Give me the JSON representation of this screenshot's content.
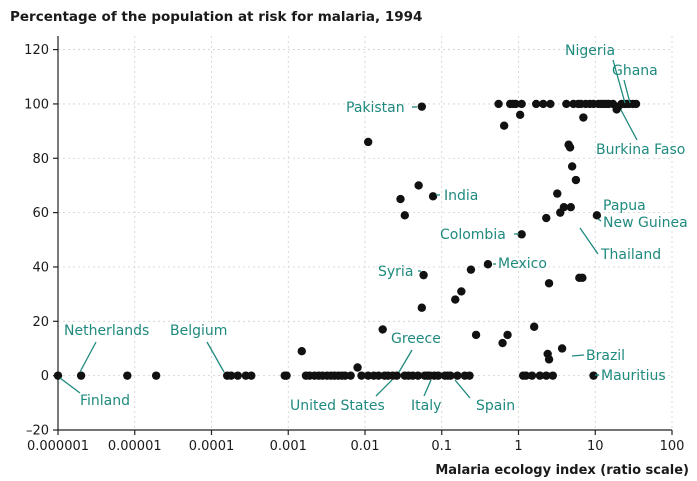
{
  "chart_data": {
    "type": "scatter",
    "title": "Percentage of the population at risk for malaria, 1994",
    "xlabel": "Malaria ecology index (ratio scale)",
    "ylabel": "",
    "xscale": "log",
    "xlim": [
      1e-06,
      100
    ],
    "ylim": [
      -20,
      125
    ],
    "grid": true,
    "accent_color": "#1f8a7e",
    "point_color": "#111111",
    "x_ticks": [
      {
        "value": 1e-06,
        "label": "0.000001"
      },
      {
        "value": 1e-05,
        "label": "0.00001"
      },
      {
        "value": 0.0001,
        "label": "0.0001"
      },
      {
        "value": 0.001,
        "label": "0.001"
      },
      {
        "value": 0.01,
        "label": "0.01"
      },
      {
        "value": 0.1,
        "label": "0.1"
      },
      {
        "value": 1,
        "label": "1"
      },
      {
        "value": 10,
        "label": "10"
      },
      {
        "value": 100,
        "label": "100"
      }
    ],
    "y_ticks": [
      {
        "value": -20,
        "label": "–20"
      },
      {
        "value": 0,
        "label": "0"
      },
      {
        "value": 20,
        "label": "20"
      },
      {
        "value": 40,
        "label": "40"
      },
      {
        "value": 60,
        "label": "60"
      },
      {
        "value": 80,
        "label": "80"
      },
      {
        "value": 100,
        "label": "100"
      },
      {
        "value": 120,
        "label": "120"
      }
    ],
    "points": [
      [
        1e-06,
        0
      ],
      [
        2e-06,
        0
      ],
      [
        8e-06,
        0
      ],
      [
        1.9e-05,
        0
      ],
      [
        0.00016,
        0
      ],
      [
        0.00018,
        0
      ],
      [
        0.00022,
        0
      ],
      [
        0.00028,
        0
      ],
      [
        0.00033,
        0
      ],
      [
        0.0009,
        0
      ],
      [
        0.00095,
        0
      ],
      [
        0.0015,
        9
      ],
      [
        0.0017,
        0
      ],
      [
        0.0019,
        0
      ],
      [
        0.0022,
        0
      ],
      [
        0.0025,
        0
      ],
      [
        0.0028,
        0
      ],
      [
        0.0032,
        0
      ],
      [
        0.0036,
        0
      ],
      [
        0.004,
        0
      ],
      [
        0.0045,
        0
      ],
      [
        0.005,
        0
      ],
      [
        0.0055,
        0
      ],
      [
        0.0065,
        0
      ],
      [
        0.008,
        3
      ],
      [
        0.009,
        0
      ],
      [
        0.011,
        86
      ],
      [
        0.011,
        0
      ],
      [
        0.013,
        0
      ],
      [
        0.015,
        0
      ],
      [
        0.017,
        17
      ],
      [
        0.018,
        0
      ],
      [
        0.02,
        0
      ],
      [
        0.023,
        0
      ],
      [
        0.026,
        0
      ],
      [
        0.029,
        65
      ],
      [
        0.033,
        59
      ],
      [
        0.033,
        0
      ],
      [
        0.037,
        0
      ],
      [
        0.042,
        0
      ],
      [
        0.049,
        0
      ],
      [
        0.05,
        70
      ],
      [
        0.055,
        99
      ],
      [
        0.055,
        25
      ],
      [
        0.058,
        37
      ],
      [
        0.06,
        0
      ],
      [
        0.065,
        0
      ],
      [
        0.07,
        0
      ],
      [
        0.077,
        66
      ],
      [
        0.08,
        0
      ],
      [
        0.09,
        0
      ],
      [
        0.11,
        0
      ],
      [
        0.12,
        0
      ],
      [
        0.13,
        0
      ],
      [
        0.15,
        28
      ],
      [
        0.16,
        0
      ],
      [
        0.18,
        31
      ],
      [
        0.2,
        0
      ],
      [
        0.23,
        0
      ],
      [
        0.24,
        39
      ],
      [
        0.28,
        15
      ],
      [
        0.4,
        41
      ],
      [
        0.55,
        100
      ],
      [
        0.62,
        12
      ],
      [
        0.65,
        92
      ],
      [
        0.72,
        15
      ],
      [
        0.78,
        100
      ],
      [
        0.85,
        100
      ],
      [
        0.92,
        100
      ],
      [
        1.05,
        96
      ],
      [
        1.1,
        100
      ],
      [
        1.1,
        52
      ],
      [
        1.15,
        0
      ],
      [
        1.25,
        0
      ],
      [
        1.5,
        0
      ],
      [
        1.6,
        18
      ],
      [
        1.7,
        100
      ],
      [
        1.9,
        0
      ],
      [
        2.1,
        100
      ],
      [
        2.3,
        0
      ],
      [
        2.3,
        58
      ],
      [
        2.4,
        8
      ],
      [
        2.5,
        6
      ],
      [
        2.5,
        34
      ],
      [
        2.6,
        100
      ],
      [
        2.8,
        0
      ],
      [
        3.2,
        67
      ],
      [
        3.5,
        60
      ],
      [
        3.7,
        10
      ],
      [
        3.9,
        62
      ],
      [
        4.2,
        100
      ],
      [
        4.5,
        85
      ],
      [
        4.7,
        84
      ],
      [
        4.8,
        62
      ],
      [
        5,
        77
      ],
      [
        5.2,
        100
      ],
      [
        5.6,
        72
      ],
      [
        6,
        100
      ],
      [
        6.2,
        36
      ],
      [
        6.5,
        100
      ],
      [
        6.8,
        36
      ],
      [
        7,
        95
      ],
      [
        7.5,
        100
      ],
      [
        8.5,
        100
      ],
      [
        9.5,
        100
      ],
      [
        9.5,
        0
      ],
      [
        10.5,
        59
      ],
      [
        11,
        100
      ],
      [
        12,
        100
      ],
      [
        13,
        100
      ],
      [
        14,
        100
      ],
      [
        15,
        100
      ],
      [
        17,
        100
      ],
      [
        19,
        98
      ],
      [
        20,
        99
      ],
      [
        22,
        100
      ],
      [
        24,
        100
      ],
      [
        26,
        100
      ],
      [
        28,
        100
      ],
      [
        31,
        100
      ],
      [
        34,
        100
      ]
    ],
    "annotations": [
      {
        "id": "nigeria",
        "text": "Nigeria"
      },
      {
        "id": "ghana",
        "text": "Ghana"
      },
      {
        "id": "burkina-faso",
        "text": "Burkina Faso"
      },
      {
        "id": "pakistan",
        "text": "Pakistan"
      },
      {
        "id": "india",
        "text": "India"
      },
      {
        "id": "papua",
        "text": "Papua"
      },
      {
        "id": "new-guinea",
        "text": "New Guinea"
      },
      {
        "id": "colombia",
        "text": "Colombia"
      },
      {
        "id": "thailand",
        "text": "Thailand"
      },
      {
        "id": "syria",
        "text": "Syria"
      },
      {
        "id": "mexico",
        "text": "Mexico"
      },
      {
        "id": "netherlands",
        "text": "Netherlands"
      },
      {
        "id": "belgium",
        "text": "Belgium"
      },
      {
        "id": "greece",
        "text": "Greece"
      },
      {
        "id": "brazil",
        "text": "Brazil"
      },
      {
        "id": "mauritius",
        "text": "Mauritius"
      },
      {
        "id": "finland",
        "text": "Finland"
      },
      {
        "id": "united-states",
        "text": "United States"
      },
      {
        "id": "italy",
        "text": "Italy"
      },
      {
        "id": "spain",
        "text": "Spain"
      }
    ]
  }
}
